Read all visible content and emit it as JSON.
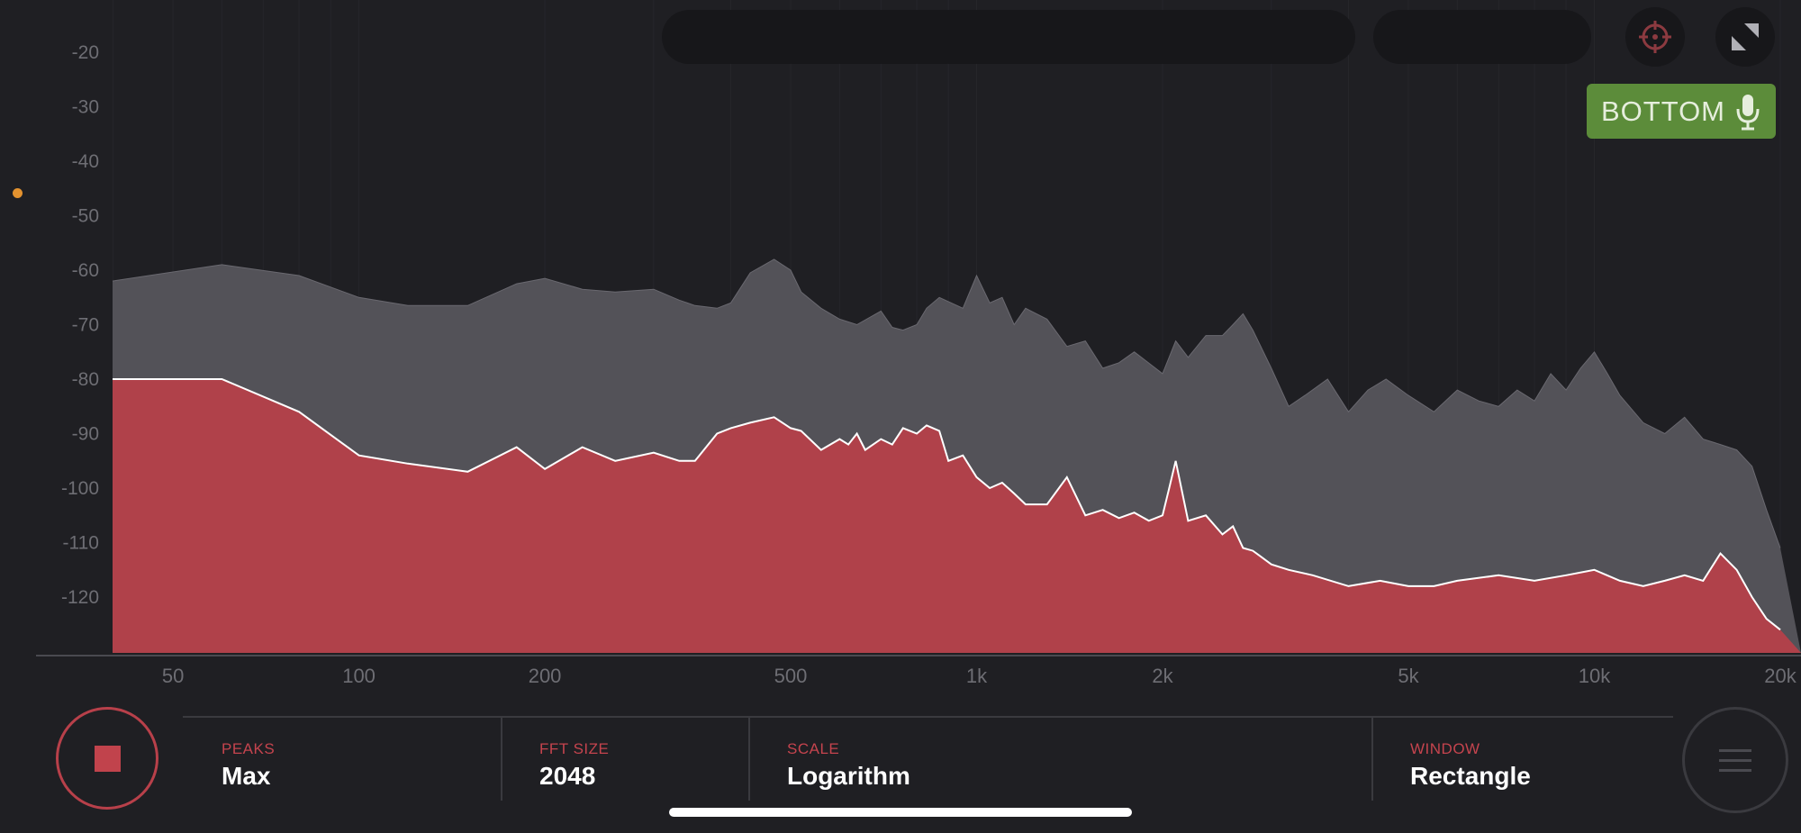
{
  "app": {
    "mic_badge": {
      "label": "BOTTOM",
      "icon": "microphone-icon",
      "color": "#5c8c3a"
    },
    "top_buttons": [
      {
        "name": "crosshair-icon"
      },
      {
        "name": "fullscreen-icon"
      }
    ],
    "accent_color": "#c1434c",
    "settings": [
      {
        "label": "PEAKS",
        "value": "Max"
      },
      {
        "label": "FFT SIZE",
        "value": "2048"
      },
      {
        "label": "SCALE",
        "value": "Logarithm"
      },
      {
        "label": "WINDOW",
        "value": "Rectangle"
      }
    ],
    "controls": {
      "stop_icon": "stop-icon",
      "menu_icon": "menu-icon"
    }
  },
  "chart_data": {
    "type": "area",
    "x_scale": "log",
    "xlim": [
      30,
      20000
    ],
    "ylim": [
      -130,
      -15
    ],
    "y_ticks": [
      -20,
      -30,
      -40,
      -50,
      -60,
      -70,
      -80,
      -90,
      -100,
      -110,
      -120
    ],
    "x_ticks": [
      {
        "value": 50,
        "label": "50"
      },
      {
        "value": 100,
        "label": "100"
      },
      {
        "value": 200,
        "label": "200"
      },
      {
        "value": 500,
        "label": "500"
      },
      {
        "value": 1000,
        "label": "1k"
      },
      {
        "value": 2000,
        "label": "2k"
      },
      {
        "value": 5000,
        "label": "5k"
      },
      {
        "value": 10000,
        "label": "10k"
      },
      {
        "value": 20000,
        "label": "20k"
      }
    ],
    "series": [
      {
        "role": "peak-hold",
        "color": "#535258",
        "x": [
          37,
          60,
          80,
          100,
          120,
          150,
          180,
          200,
          230,
          260,
          300,
          330,
          350,
          380,
          400,
          430,
          470,
          500,
          520,
          560,
          600,
          640,
          700,
          730,
          760,
          800,
          830,
          870,
          950,
          1000,
          1050,
          1100,
          1150,
          1200,
          1300,
          1400,
          1500,
          1600,
          1700,
          1800,
          2000,
          2100,
          2200,
          2350,
          2500,
          2600,
          2700,
          2800,
          3000,
          3200,
          3400,
          3700,
          4000,
          4300,
          4600,
          5000,
          5500,
          6000,
          6500,
          7000,
          7500,
          8000,
          8500,
          9000,
          9500,
          10000,
          10500,
          11000,
          12000,
          13000,
          14000,
          15000,
          16000,
          17000,
          18000,
          19000,
          20000
        ],
        "y": [
          -62,
          -59,
          -61,
          -65,
          -66.5,
          -66.5,
          -62.5,
          -61.5,
          -63.5,
          -64,
          -63.5,
          -65.5,
          -66.5,
          -67,
          -66,
          -60.5,
          -58,
          -60,
          -64,
          -67,
          -69,
          -70,
          -67.5,
          -70.5,
          -71,
          -70,
          -67,
          -65,
          -67,
          -61,
          -66,
          -65,
          -70,
          -67,
          -69,
          -74,
          -73,
          -78,
          -77,
          -75,
          -79,
          -73,
          -76,
          -72,
          -72,
          -70,
          -68,
          -71,
          -78,
          -85,
          -83,
          -80,
          -86,
          -82,
          -80,
          -83,
          -86,
          -82,
          -84,
          -85,
          -82,
          -84,
          -79,
          -82,
          -78,
          -75,
          -79,
          -83,
          -88,
          -90,
          -87,
          -91,
          -92,
          -93,
          -96,
          -104,
          -111
        ]
      },
      {
        "role": "current",
        "color": "#b0414a",
        "x": [
          37,
          50,
          60,
          80,
          100,
          120,
          150,
          180,
          200,
          230,
          260,
          300,
          330,
          350,
          380,
          400,
          430,
          470,
          500,
          520,
          560,
          600,
          620,
          640,
          660,
          700,
          730,
          760,
          800,
          830,
          870,
          900,
          950,
          1000,
          1050,
          1100,
          1150,
          1200,
          1300,
          1400,
          1500,
          1600,
          1700,
          1800,
          1900,
          2000,
          2050,
          2100,
          2200,
          2350,
          2500,
          2600,
          2700,
          2800,
          3000,
          3200,
          3500,
          4000,
          4500,
          5000,
          5500,
          6000,
          7000,
          8000,
          9000,
          10000,
          11000,
          12000,
          13000,
          14000,
          15000,
          16000,
          17000,
          18000,
          19000,
          20000
        ],
        "y": [
          -80,
          -80,
          -80,
          -86,
          -94,
          -95.5,
          -97,
          -92.5,
          -96.5,
          -92.5,
          -95,
          -93.5,
          -95,
          -95,
          -90,
          -89,
          -88,
          -87,
          -89,
          -89.5,
          -93,
          -91,
          -92,
          -90,
          -93,
          -91,
          -92,
          -89,
          -90,
          -88.5,
          -89.5,
          -95,
          -94,
          -98,
          -100,
          -99,
          -101,
          -103,
          -103,
          -98,
          -105,
          -104,
          -105.5,
          -104.5,
          -106,
          -105,
          -100,
          -95,
          -106,
          -105,
          -108.5,
          -107,
          -111,
          -111.5,
          -114,
          -115,
          -116,
          -118,
          -117,
          -118,
          -118,
          -117,
          -116,
          -117,
          -116,
          -115,
          -117,
          -118,
          -117,
          -116,
          -117,
          -112,
          -115,
          -120,
          -124,
          -126
        ]
      }
    ]
  }
}
